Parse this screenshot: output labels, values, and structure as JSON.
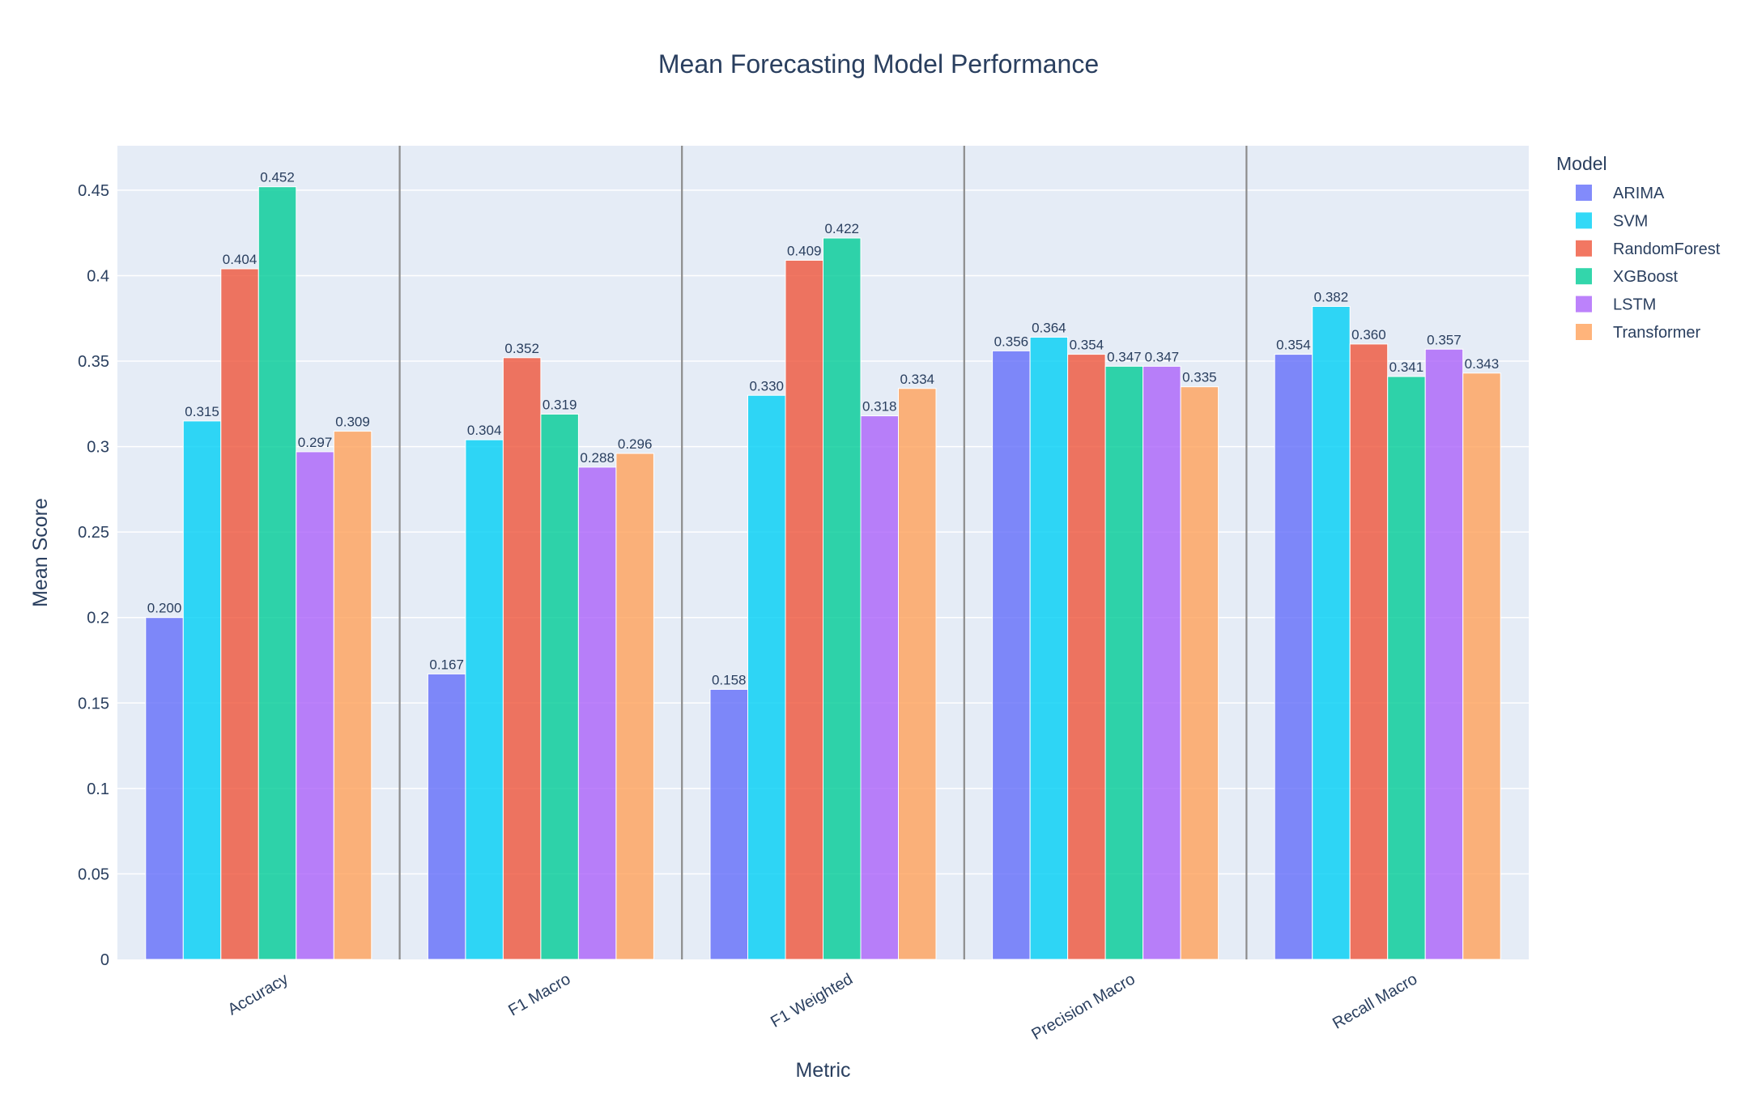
{
  "chart_data": {
    "type": "bar",
    "title": "Mean Forecasting Model Performance",
    "xlabel": "Metric",
    "ylabel": "Mean Score",
    "categories": [
      "Accuracy",
      "F1 Macro",
      "F1 Weighted",
      "Precision Macro",
      "Recall Macro"
    ],
    "ylim": [
      0,
      0.476
    ],
    "yticks": [
      0,
      0.05,
      0.1,
      0.15,
      0.2,
      0.25,
      0.3,
      0.35,
      0.4,
      0.45
    ],
    "ytick_labels": [
      "0",
      "0.05",
      "0.1",
      "0.15",
      "0.2",
      "0.25",
      "0.3",
      "0.35",
      "0.4",
      "0.45"
    ],
    "grid": true,
    "legend_title": "Model",
    "legend_position": "top-right outside",
    "series": [
      {
        "name": "ARIMA",
        "color": "#636efa",
        "values": [
          0.2,
          0.167,
          0.158,
          0.356,
          0.354
        ],
        "labels": [
          "0.200",
          "0.167",
          "0.158",
          "0.356",
          "0.354"
        ]
      },
      {
        "name": "SVM",
        "color": "#00cff5",
        "values": [
          0.315,
          0.304,
          0.33,
          0.364,
          0.382
        ],
        "labels": [
          "0.315",
          "0.304",
          "0.330",
          "0.364",
          "0.382"
        ]
      },
      {
        "name": "RandomForest",
        "color": "#ef553b",
        "values": [
          0.404,
          0.352,
          0.409,
          0.354,
          0.36
        ],
        "labels": [
          "0.404",
          "0.352",
          "0.409",
          "0.354",
          "0.360"
        ]
      },
      {
        "name": "XGBoost",
        "color": "#00cc96",
        "values": [
          0.452,
          0.319,
          0.422,
          0.347,
          0.341
        ],
        "labels": [
          "0.452",
          "0.319",
          "0.422",
          "0.347",
          "0.341"
        ]
      },
      {
        "name": "LSTM",
        "color": "#ab63fa",
        "values": [
          0.297,
          0.288,
          0.318,
          0.347,
          0.357
        ],
        "labels": [
          "0.297",
          "0.288",
          "0.318",
          "0.347",
          "0.357"
        ]
      },
      {
        "name": "Transformer",
        "color": "#ffa15a",
        "values": [
          0.309,
          0.296,
          0.334,
          0.335,
          0.343
        ],
        "labels": [
          "0.309",
          "0.296",
          "0.334",
          "0.335",
          "0.343"
        ]
      }
    ]
  }
}
